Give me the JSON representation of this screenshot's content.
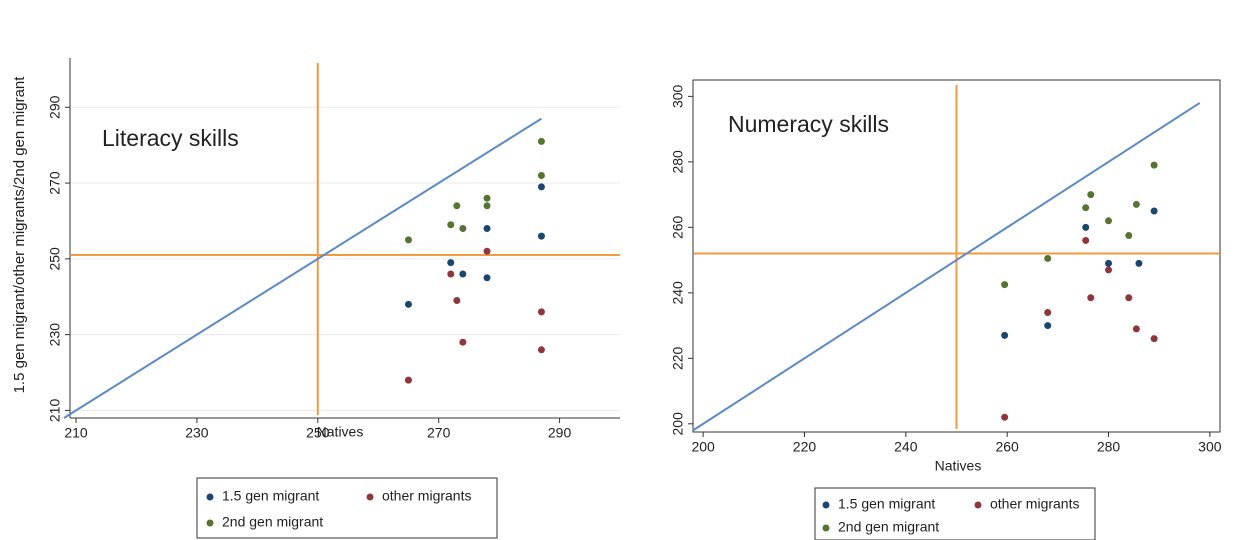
{
  "chart_data": [
    {
      "type": "scatter",
      "annotation": "Literacy skills",
      "x_label": "Natives",
      "y_label": "1.5 gen migrant/other migrants/2nd gen migrant",
      "xlim": [
        209,
        300
      ],
      "ylim": [
        208,
        303
      ],
      "xticks": [
        210,
        230,
        250,
        270,
        290
      ],
      "yticks": [
        210,
        230,
        250,
        270,
        290
      ],
      "grid": true,
      "frame": false,
      "ref_x": 250,
      "ref_y": 251,
      "ref_color": "#f39a3c",
      "diagonal": [
        208,
        287
      ],
      "diagonal_color": "#5b8ac6",
      "series": [
        {
          "name": "1.5 gen migrant",
          "color": "#1a476f",
          "x": [
            265,
            272,
            274,
            278,
            278,
            287,
            287
          ],
          "y": [
            238,
            249,
            246,
            245,
            258,
            256,
            269
          ]
        },
        {
          "name": "other migrants",
          "color": "#90353b",
          "x": [
            265,
            272,
            273,
            274,
            278,
            287,
            287
          ],
          "y": [
            218,
            246,
            239,
            228,
            252,
            236,
            226
          ]
        },
        {
          "name": "2nd gen migrant",
          "color": "#55752f",
          "x": [
            265,
            272,
            273,
            274,
            278,
            278,
            287,
            287
          ],
          "y": [
            255,
            259,
            264,
            258,
            266,
            264,
            272,
            281
          ]
        }
      ]
    },
    {
      "type": "scatter",
      "annotation": "Numeracy skills",
      "x_label": "Natives",
      "xlim": [
        198,
        302
      ],
      "ylim": [
        197.5,
        305
      ],
      "xticks": [
        200,
        220,
        240,
        260,
        280,
        300
      ],
      "yticks": [
        200,
        220,
        240,
        260,
        280,
        300
      ],
      "grid": false,
      "frame": true,
      "ref_x": 250,
      "ref_y": 252,
      "ref_color": "#f39a3c",
      "diagonal": [
        198,
        298
      ],
      "diagonal_color": "#5b8ac6",
      "series": [
        {
          "name": "1.5 gen migrant",
          "color": "#1a476f",
          "x": [
            259.5,
            268,
            275.5,
            280,
            286,
            289
          ],
          "y": [
            227,
            230,
            260,
            249,
            249,
            265
          ]
        },
        {
          "name": "other migrants",
          "color": "#90353b",
          "x": [
            259.5,
            268,
            275.5,
            276.5,
            280,
            284,
            285.5,
            289
          ],
          "y": [
            202,
            234,
            256,
            238.5,
            247,
            238.5,
            229,
            226
          ]
        },
        {
          "name": "2nd gen migrant",
          "color": "#55752f",
          "x": [
            259.5,
            268,
            275.5,
            276.5,
            280,
            284,
            285.5,
            289
          ],
          "y": [
            242.5,
            250.5,
            266,
            270,
            262,
            257.5,
            267,
            279
          ]
        }
      ]
    }
  ]
}
